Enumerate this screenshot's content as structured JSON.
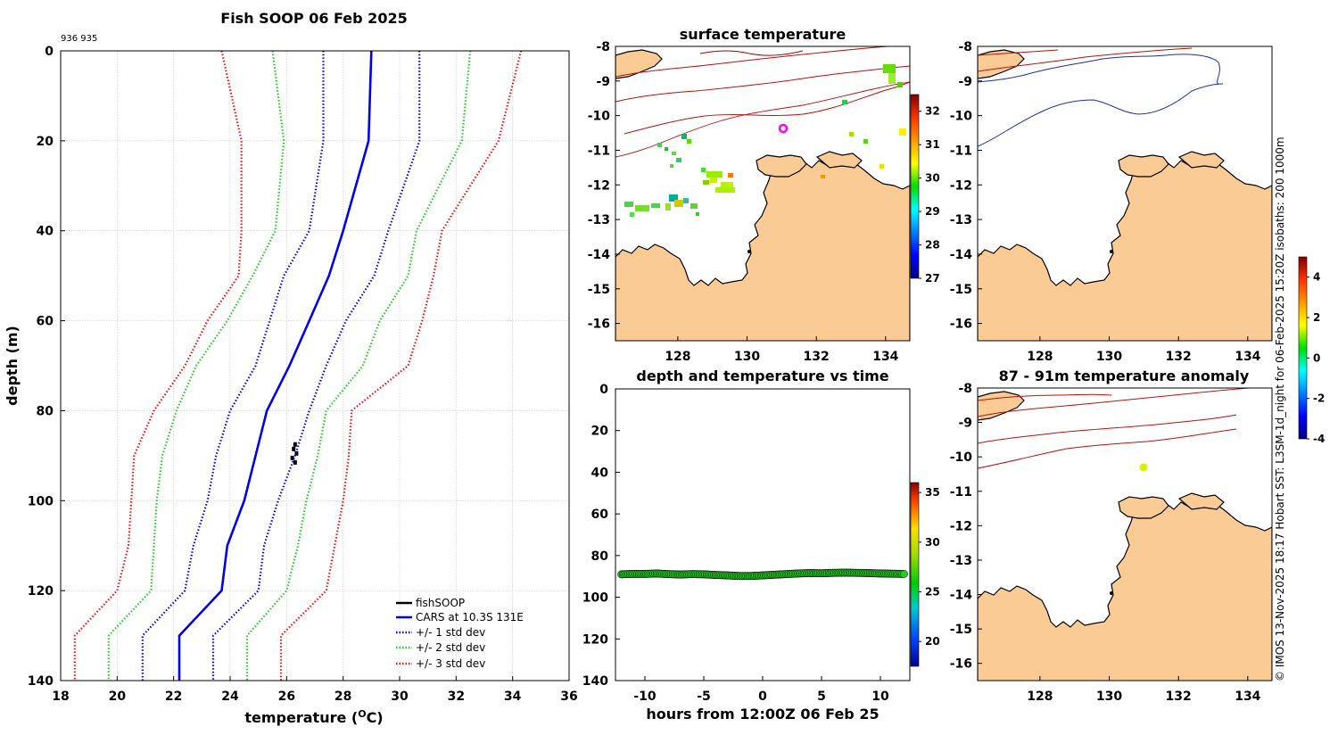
{
  "chart_data": [
    {
      "type": "line",
      "title": "Fish SOOP 06 Feb 2025",
      "id_label": "936 935",
      "xlabel": "temperature (",
      "xlabel_unit_sup": "O",
      "xlabel_unit_rest": "C)",
      "ylabel": "depth (m)",
      "xlim": [
        18,
        36
      ],
      "ylim": [
        140,
        0
      ],
      "xticks": [
        18,
        20,
        22,
        24,
        26,
        28,
        30,
        32,
        34,
        36
      ],
      "yticks": [
        0,
        20,
        40,
        60,
        80,
        100,
        120,
        140
      ],
      "grid": true,
      "legend_position": "bottom-right",
      "depth": [
        0,
        20,
        40,
        50,
        60,
        70,
        80,
        90,
        100,
        110,
        120,
        130,
        140
      ],
      "series": [
        {
          "name": "fishSOOP",
          "style": "solid-black",
          "color": "#000000",
          "points": [
            [
              26.3,
              87.5
            ],
            [
              26.25,
              88.5
            ],
            [
              26.35,
              89.5
            ],
            [
              26.2,
              90.5
            ],
            [
              26.3,
              91.5
            ]
          ]
        },
        {
          "name": "CARS at 10.3S 131E",
          "style": "solid",
          "color": "#0000ee",
          "values": [
            29.0,
            28.9,
            28.0,
            27.5,
            26.8,
            26.1,
            25.3,
            24.9,
            24.5,
            23.9,
            23.7,
            22.2,
            22.2
          ]
        },
        {
          "name": "+/- 1 std dev",
          "style": "dotted",
          "color": "#0000ee",
          "values": [
            30.7,
            30.7,
            29.6,
            29.1,
            28.1,
            27.4,
            26.8,
            26.3,
            25.7,
            25.2,
            25.0,
            23.4,
            23.4
          ]
        },
        {
          "name": "",
          "style": "dotted",
          "color": "#0000ee",
          "values": [
            27.3,
            27.3,
            26.8,
            25.9,
            25.4,
            24.9,
            24.0,
            23.5,
            23.2,
            22.7,
            22.4,
            20.9,
            20.9
          ]
        },
        {
          "name": "+/- 2 std dev",
          "style": "dotted",
          "color": "#22cc22",
          "values": [
            32.5,
            32.2,
            30.6,
            30.3,
            29.3,
            28.7,
            27.4,
            27.1,
            26.7,
            26.4,
            26.0,
            24.6,
            24.6
          ]
        },
        {
          "name": "",
          "style": "dotted",
          "color": "#22cc22",
          "values": [
            25.5,
            25.9,
            25.6,
            24.8,
            23.9,
            22.8,
            22.1,
            21.6,
            21.4,
            21.3,
            21.2,
            19.7,
            19.7
          ]
        },
        {
          "name": "+/- 3 std dev",
          "style": "dotted",
          "color": "#ee1111",
          "values": [
            34.3,
            33.5,
            31.5,
            31.2,
            30.8,
            30.3,
            28.3,
            28.2,
            28.0,
            27.7,
            27.4,
            25.8,
            25.8
          ]
        },
        {
          "name": "",
          "style": "dotted",
          "color": "#ee1111",
          "values": [
            23.7,
            24.4,
            24.4,
            24.3,
            23.2,
            22.4,
            21.3,
            20.6,
            20.5,
            20.4,
            20.0,
            18.5,
            18.5
          ]
        }
      ]
    },
    {
      "type": "heatmap",
      "title": "surface temperature",
      "xlim": [
        126.2,
        134.7
      ],
      "ylim": [
        -16.5,
        -8
      ],
      "xticks": [
        128,
        130,
        132,
        134
      ],
      "yticks": [
        -8,
        -9,
        -10,
        -11,
        -12,
        -13,
        -14,
        -15,
        -16
      ],
      "colorbar": {
        "min": 27,
        "max": 32.5,
        "ticks": [
          27,
          28,
          29,
          30,
          31,
          32
        ]
      },
      "marker": {
        "lon": 130.9,
        "lat": -10.35,
        "color": "#ff00ff",
        "shape": "ring"
      }
    },
    {
      "type": "heatmap",
      "title": "",
      "xlim": [
        126.2,
        134.7
      ],
      "ylim": [
        -16.5,
        -8
      ],
      "xticks": [
        128,
        130,
        132,
        134
      ],
      "yticks": [
        -8,
        -9,
        -10,
        -11,
        -12,
        -13,
        -14,
        -15,
        -16
      ],
      "colorbar": {
        "min": -4,
        "max": 5,
        "ticks": [
          -4,
          -2,
          0,
          2,
          4
        ]
      }
    },
    {
      "type": "scatter",
      "title": "depth and temperature vs time",
      "xlabel": "hours from 12:00Z 06 Feb 25",
      "ylabel": "",
      "xlim": [
        -12.5,
        12.5
      ],
      "ylim": [
        140,
        0
      ],
      "xticks": [
        -10,
        -5,
        0,
        5,
        10
      ],
      "yticks": [
        0,
        20,
        40,
        60,
        80,
        100,
        120,
        140
      ],
      "colorbar": {
        "min": 17.5,
        "max": 36,
        "ticks": [
          20,
          25,
          30,
          35
        ]
      },
      "x": [
        -12,
        -11,
        -10,
        -9,
        -8,
        -7,
        -6,
        -5,
        -4,
        -3,
        -2,
        -1,
        0,
        1,
        2,
        3,
        4,
        5,
        6,
        7,
        8,
        9,
        10,
        11,
        12
      ],
      "y": [
        89,
        88.8,
        88.8,
        88.6,
        88.9,
        89.1,
        88.9,
        89.0,
        89.3,
        89.5,
        89.8,
        89.8,
        89.5,
        89.2,
        88.9,
        88.6,
        88.4,
        88.5,
        88.3,
        88.2,
        88.3,
        88.4,
        88.6,
        88.7,
        88.8
      ],
      "value": 26.3
    },
    {
      "type": "heatmap",
      "title": "87 - 91m temperature anomaly",
      "xlim": [
        126.2,
        134.7
      ],
      "ylim": [
        -16.5,
        -8
      ],
      "xticks": [
        128,
        130,
        132,
        134
      ],
      "yticks": [
        -8,
        -9,
        -10,
        -11,
        -12,
        -13,
        -14,
        -15,
        -16
      ],
      "marker": {
        "lon": 130.95,
        "lat": -10.3,
        "color": "#ddee00",
        "shape": "dot"
      }
    }
  ],
  "side_caption": "© IMOS 13-Nov-2025 18:17 Hobart SST: L3SM-1d_night for 06-Feb-2025 15:20Z isobaths: 200  1000m",
  "colors": {
    "land": "#fbcb96",
    "cars": "#0000ee",
    "std1": "#0000ee",
    "std2": "#22cc22",
    "std3": "#ee1111",
    "isobath200": "#b8110c",
    "isobath1000": "#1a30a0",
    "track": "#22cc22"
  }
}
